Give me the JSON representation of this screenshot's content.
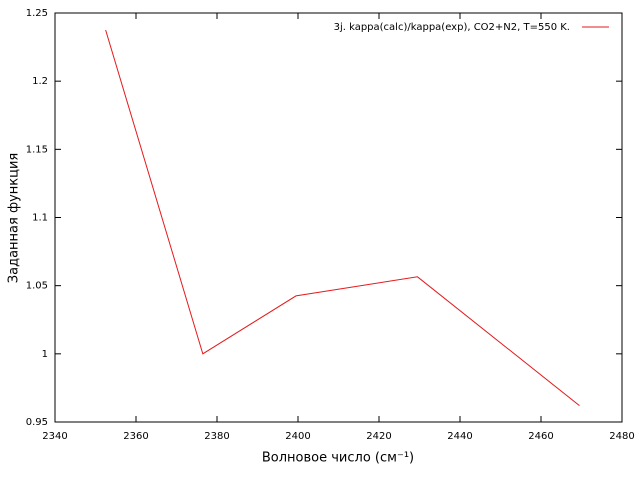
{
  "chart_data": {
    "type": "line",
    "x_label": "Волновое число (см⁻¹)",
    "y_label": "Заданная функция",
    "x": [
      2352.5,
      2376.5,
      2399.5,
      2429.5,
      2469.5
    ],
    "series": [
      {
        "name": "3j. kappa(calc)/kappa(exp),  CO2+N2, T=550 K.",
        "color": "#e41a1c",
        "values": [
          1.2375,
          1.0,
          1.0425,
          1.0565,
          0.962
        ]
      }
    ],
    "xlim": [
      2340,
      2480
    ],
    "xticks": [
      2340,
      2360,
      2380,
      2400,
      2420,
      2440,
      2460,
      2480
    ],
    "ylim": [
      0.95,
      1.25
    ],
    "yticks": [
      0.95,
      1,
      1.05,
      1.1,
      1.15,
      1.2,
      1.25
    ],
    "legend": "upper right",
    "grid": false
  }
}
